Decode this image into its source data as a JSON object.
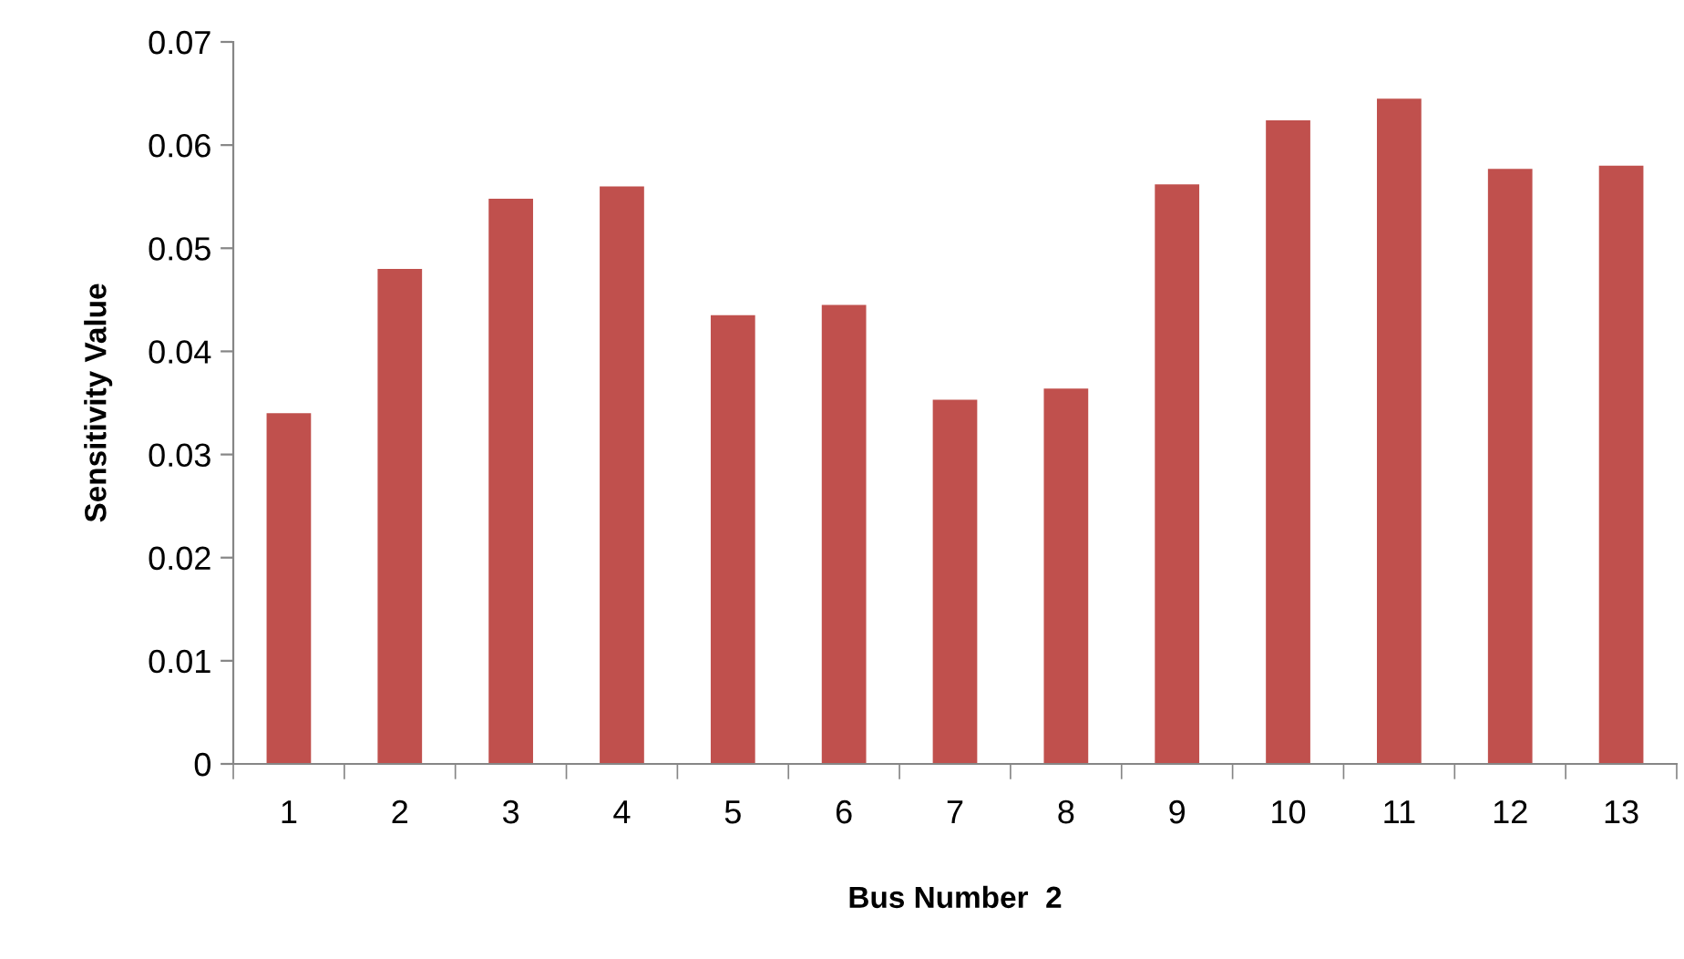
{
  "chart_data": {
    "type": "bar",
    "xlabel": "Bus Number  2",
    "ylabel": "Sensitivity Value",
    "categories": [
      "1",
      "2",
      "3",
      "4",
      "5",
      "6",
      "7",
      "8",
      "9",
      "10",
      "11",
      "12",
      "13"
    ],
    "values": [
      0.034,
      0.048,
      0.0548,
      0.056,
      0.0435,
      0.0445,
      0.0353,
      0.0364,
      0.0562,
      0.0624,
      0.0645,
      0.0577,
      0.058
    ],
    "color": "#c0504d",
    "ylim": [
      0,
      0.07
    ],
    "yticks": [
      {
        "value": 0,
        "label": "0"
      },
      0.01,
      0.02,
      0.03,
      0.04,
      0.05,
      0.06,
      0.07
    ],
    "grid": false,
    "legend": false
  }
}
